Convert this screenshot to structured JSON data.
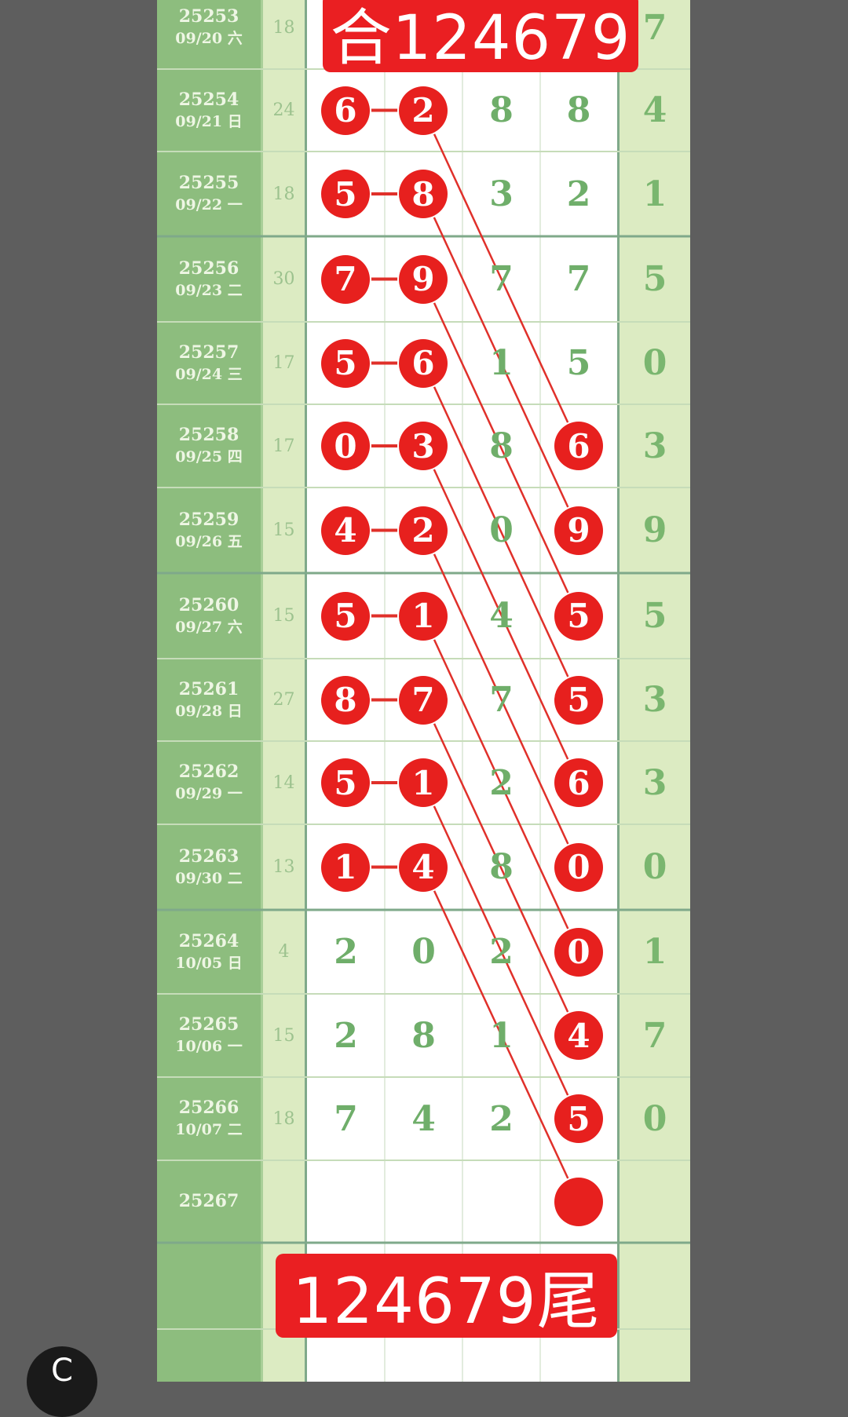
{
  "colors": {
    "period_bg": "#8dbd7e",
    "sum_bg": "#dcebc2",
    "digit_text": "#6fae6a",
    "ball": "#e7201e",
    "banner": "#ea1f22",
    "page_bg": "#5e5e5e"
  },
  "top_banner": "合124679",
  "bottom_banner": "124679尾",
  "rows": [
    {
      "period": "25253",
      "date": "09/20 六",
      "sum": "18",
      "digits": [
        "",
        "",
        "",
        ""
      ],
      "last": "7",
      "circled": []
    },
    {
      "period": "25254",
      "date": "09/21 日",
      "sum": "24",
      "digits": [
        "6",
        "2",
        "8",
        "8"
      ],
      "last": "4",
      "circled": [
        0,
        1
      ]
    },
    {
      "period": "25255",
      "date": "09/22 一",
      "sum": "18",
      "digits": [
        "5",
        "8",
        "3",
        "2"
      ],
      "last": "1",
      "circled": [
        0,
        1
      ]
    },
    {
      "period": "25256",
      "date": "09/23 二",
      "sum": "30",
      "digits": [
        "7",
        "9",
        "7",
        "7"
      ],
      "last": "5",
      "circled": [
        0,
        1
      ]
    },
    {
      "period": "25257",
      "date": "09/24 三",
      "sum": "17",
      "digits": [
        "5",
        "6",
        "1",
        "5"
      ],
      "last": "0",
      "circled": [
        0,
        1
      ]
    },
    {
      "period": "25258",
      "date": "09/25 四",
      "sum": "17",
      "digits": [
        "0",
        "3",
        "8",
        "6"
      ],
      "last": "3",
      "circled": [
        0,
        1,
        3
      ]
    },
    {
      "period": "25259",
      "date": "09/26 五",
      "sum": "15",
      "digits": [
        "4",
        "2",
        "0",
        "9"
      ],
      "last": "9",
      "circled": [
        0,
        1,
        3
      ]
    },
    {
      "period": "25260",
      "date": "09/27 六",
      "sum": "15",
      "digits": [
        "5",
        "1",
        "4",
        "5"
      ],
      "last": "5",
      "circled": [
        0,
        1,
        3
      ]
    },
    {
      "period": "25261",
      "date": "09/28 日",
      "sum": "27",
      "digits": [
        "8",
        "7",
        "7",
        "5"
      ],
      "last": "3",
      "circled": [
        0,
        1,
        3
      ]
    },
    {
      "period": "25262",
      "date": "09/29 一",
      "sum": "14",
      "digits": [
        "5",
        "1",
        "2",
        "6"
      ],
      "last": "3",
      "circled": [
        0,
        1,
        3
      ]
    },
    {
      "period": "25263",
      "date": "09/30 二",
      "sum": "13",
      "digits": [
        "1",
        "4",
        "8",
        "0"
      ],
      "last": "0",
      "circled": [
        0,
        1,
        3
      ]
    },
    {
      "period": "25264",
      "date": "10/05 日",
      "sum": "4",
      "digits": [
        "2",
        "0",
        "2",
        "0"
      ],
      "last": "1",
      "circled": [
        3
      ]
    },
    {
      "period": "25265",
      "date": "10/06 一",
      "sum": "15",
      "digits": [
        "2",
        "8",
        "1",
        "4"
      ],
      "last": "7",
      "circled": [
        3
      ]
    },
    {
      "period": "25266",
      "date": "10/07 二",
      "sum": "18",
      "digits": [
        "7",
        "4",
        "2",
        "5"
      ],
      "last": "0",
      "circled": [
        3
      ]
    },
    {
      "period": "25267",
      "date": "",
      "sum": "",
      "digits": [
        "",
        "",
        "",
        ""
      ],
      "last": "",
      "circled": [
        3
      ]
    }
  ],
  "badge_icon": "c-logo-icon"
}
